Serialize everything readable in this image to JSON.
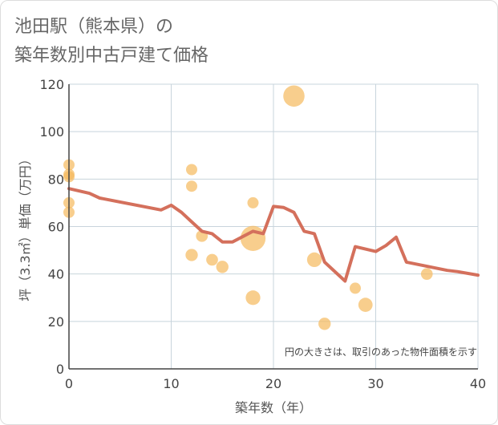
{
  "chart_data": {
    "type": "scatter",
    "title_line1": "池田駅（熊本県）の",
    "title_line2": "築年数別中古戸建て価格",
    "xlabel": "築年数（年）",
    "ylabel": "坪（3.3㎡）単価（万円）",
    "xlim": [
      0,
      40
    ],
    "ylim": [
      0,
      120
    ],
    "x_ticks": [
      "0",
      "10",
      "20",
      "30",
      "40"
    ],
    "y_ticks": [
      "0",
      "20",
      "40",
      "60",
      "80",
      "100",
      "120"
    ],
    "note": "円の大きさは、取引のあった物件面積を示す",
    "colors": {
      "bubble": "#f5b95c",
      "line": "#d4705c",
      "grid": "#c8d4dc"
    },
    "points": [
      {
        "x": 0,
        "y": 86,
        "size": 1
      },
      {
        "x": 0,
        "y": 82,
        "size": 1
      },
      {
        "x": 0,
        "y": 81,
        "size": 1
      },
      {
        "x": 0,
        "y": 70,
        "size": 1
      },
      {
        "x": 0,
        "y": 66,
        "size": 1
      },
      {
        "x": 12,
        "y": 84,
        "size": 1
      },
      {
        "x": 12,
        "y": 77,
        "size": 1
      },
      {
        "x": 12,
        "y": 48,
        "size": 1.2
      },
      {
        "x": 13,
        "y": 56,
        "size": 1.1
      },
      {
        "x": 14,
        "y": 46,
        "size": 1.1
      },
      {
        "x": 15,
        "y": 43,
        "size": 1.2
      },
      {
        "x": 18,
        "y": 70,
        "size": 1
      },
      {
        "x": 18,
        "y": 55,
        "size": 5
      },
      {
        "x": 18,
        "y": 30,
        "size": 1.7
      },
      {
        "x": 22,
        "y": 115,
        "size": 3.6
      },
      {
        "x": 24,
        "y": 46,
        "size": 1.7
      },
      {
        "x": 25,
        "y": 19,
        "size": 1.2
      },
      {
        "x": 28,
        "y": 34,
        "size": 1
      },
      {
        "x": 29,
        "y": 27,
        "size": 1.6
      },
      {
        "x": 35,
        "y": 40,
        "size": 1.1
      }
    ],
    "trend": {
      "x": [
        0,
        2,
        3,
        9,
        10,
        11,
        12,
        13,
        14,
        15,
        16,
        18,
        19,
        20,
        21,
        22,
        23,
        24,
        25,
        27,
        28,
        30,
        31,
        32,
        33,
        37,
        38,
        40
      ],
      "y": [
        76,
        74,
        72,
        67,
        69,
        66,
        62,
        58,
        57,
        53.5,
        53.5,
        58,
        57,
        68.5,
        68,
        66,
        58,
        57,
        45,
        37,
        51.5,
        49.5,
        52,
        55.5,
        45,
        41.5,
        41,
        39.5
      ]
    }
  }
}
